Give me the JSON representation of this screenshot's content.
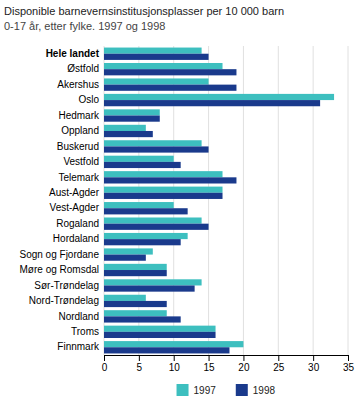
{
  "chart_data": {
    "type": "bar",
    "orientation": "horizontal",
    "title": "Disponible barnevernsinstitusjonsplasser per 10 000 barn",
    "subtitle": "0-17 år, etter fylke. 1997 og 1998",
    "categories": [
      "Hele landet",
      "Østfold",
      "Akershus",
      "Oslo",
      "Hedmark",
      "Oppland",
      "Buskerud",
      "Vestfold",
      "Telemark",
      "Aust-Agder",
      "Vest-Agder",
      "Rogaland",
      "Hordaland",
      "Sogn og Fjordane",
      "Møre og Romsdal",
      "Sør-Trøndelag",
      "Nord-Trøndelag",
      "Nordland",
      "Troms",
      "Finnmark"
    ],
    "series": [
      {
        "name": "1997",
        "color": "#3dbfbf",
        "values": [
          14,
          17,
          15,
          33,
          8,
          6,
          14,
          10,
          17,
          17,
          10,
          14,
          12,
          7,
          9,
          14,
          6,
          9,
          16,
          20
        ]
      },
      {
        "name": "1998",
        "color": "#1a3a8c",
        "values": [
          15,
          19,
          19,
          31,
          8,
          7,
          15,
          11,
          19,
          17,
          12,
          15,
          11,
          6,
          9,
          13,
          9,
          11,
          16,
          18
        ]
      }
    ],
    "xlim": [
      0,
      35
    ],
    "xticks": [
      0,
      5,
      10,
      15,
      20,
      25,
      30,
      35
    ],
    "grid": true,
    "legend": "bottom"
  }
}
